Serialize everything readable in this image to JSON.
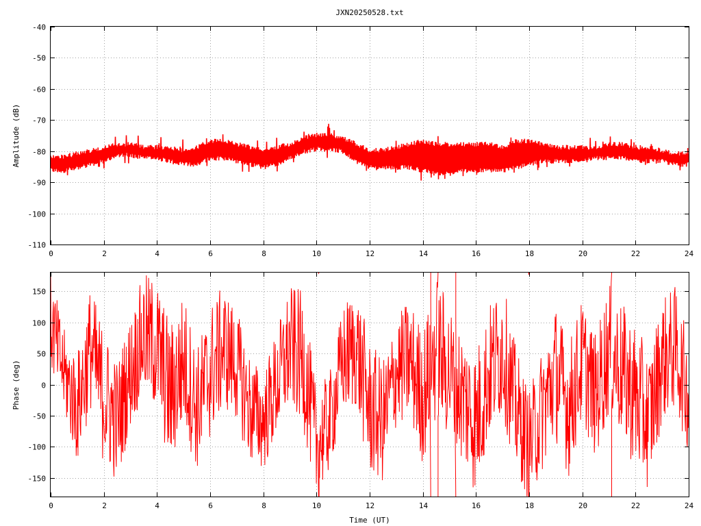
{
  "chart_data": [
    {
      "type": "line",
      "title": "JXN20250528.txt",
      "xlabel": "",
      "ylabel": "Amplitude (dB)",
      "xlim": [
        0,
        24
      ],
      "ylim": [
        -110,
        -40
      ],
      "x_ticks": [
        "0",
        "2",
        "4",
        "6",
        "8",
        "10",
        "12",
        "14",
        "16",
        "18",
        "20",
        "22",
        "24"
      ],
      "y_ticks": [
        "-40",
        "-50",
        "-60",
        "-70",
        "-80",
        "-90",
        "-100",
        "-110"
      ],
      "grid": true,
      "color": "#ff0000",
      "series": [
        {
          "x": [
            0,
            0.5,
            1,
            1.5,
            2,
            2.5,
            3,
            3.5,
            4,
            4.5,
            5,
            5.5,
            6,
            6.5,
            7,
            7.5,
            8,
            8.5,
            9,
            9.5,
            10,
            10.5,
            11,
            11.5,
            12,
            12.5,
            13,
            13.5,
            14,
            14.5,
            15,
            15.5,
            16,
            16.5,
            17,
            17.5,
            18,
            18.5,
            19,
            19.5,
            20,
            20.5,
            21,
            21.5,
            22,
            22.5,
            23,
            23.5,
            24
          ],
          "upper": [
            -81,
            -81,
            -80,
            -79,
            -78,
            -77,
            -77,
            -78,
            -78,
            -78,
            -79,
            -78,
            -76,
            -76,
            -77,
            -78,
            -79,
            -78,
            -77,
            -75,
            -74,
            -74,
            -75,
            -77,
            -79,
            -79,
            -78,
            -77,
            -76,
            -77,
            -77,
            -77,
            -77,
            -77,
            -78,
            -76,
            -76,
            -77,
            -78,
            -78,
            -78,
            -78,
            -77,
            -77,
            -78,
            -78,
            -79,
            -80,
            -80
          ],
          "lower": [
            -87,
            -87,
            -86,
            -85,
            -84,
            -82,
            -82,
            -83,
            -83,
            -84,
            -85,
            -85,
            -83,
            -83,
            -84,
            -85,
            -86,
            -85,
            -83,
            -81,
            -80,
            -80,
            -81,
            -84,
            -86,
            -86,
            -86,
            -86,
            -87,
            -88,
            -88,
            -87,
            -87,
            -87,
            -87,
            -86,
            -85,
            -84,
            -84,
            -84,
            -84,
            -83,
            -83,
            -83,
            -84,
            -84,
            -84,
            -85,
            -85
          ]
        }
      ]
    },
    {
      "type": "line",
      "title": "",
      "xlabel": "Time (UT)",
      "ylabel": "Phase (deg)",
      "xlim": [
        0,
        24
      ],
      "ylim": [
        -180,
        180
      ],
      "x_ticks": [
        "0",
        "2",
        "4",
        "6",
        "8",
        "10",
        "12",
        "14",
        "16",
        "18",
        "20",
        "22",
        "24"
      ],
      "y_ticks": [
        "150",
        "100",
        "50",
        "0",
        "-50",
        "-100",
        "-150"
      ],
      "y_tick_values": [
        150,
        100,
        50,
        0,
        -50,
        -100,
        -150
      ],
      "grid": true,
      "color": "#ff0000",
      "wrap": [
        -180,
        180
      ],
      "series": [
        {
          "x": [
            0,
            0.5,
            1,
            1.5,
            2,
            2.5,
            3,
            3.5,
            4,
            4.5,
            5,
            5.5,
            6,
            6.5,
            7,
            7.5,
            8,
            8.5,
            9,
            9.5,
            10,
            10.5,
            11,
            11.5,
            12,
            12.5,
            13,
            13.5,
            14,
            14.5,
            15,
            15.5,
            16,
            16.5,
            17,
            17.5,
            18,
            18.5,
            19,
            19.5,
            20,
            20.5,
            21,
            21.5,
            22,
            22.5,
            23,
            23.5,
            24
          ],
          "center": [
            100,
            20,
            -40,
            60,
            -20,
            -60,
            20,
            80,
            60,
            -20,
            40,
            -40,
            20,
            60,
            30,
            -40,
            -60,
            0,
            60,
            40,
            -100,
            -60,
            40,
            60,
            -40,
            -60,
            20,
            40,
            -20,
            60,
            20,
            -20,
            -60,
            20,
            60,
            -40,
            -100,
            -40,
            20,
            -40,
            40,
            -20,
            60,
            20,
            -20,
            -60,
            40,
            60,
            -20
          ],
          "spread": [
            80,
            70,
            90,
            100,
            110,
            100,
            90,
            100,
            110,
            120,
            110,
            100,
            110,
            100,
            90,
            90,
            80,
            90,
            100,
            110,
            90,
            80,
            90,
            100,
            110,
            100,
            90,
            100,
            110,
            120,
            110,
            110,
            120,
            110,
            110,
            100,
            90,
            100,
            110,
            110,
            100,
            100,
            110,
            110,
            120,
            110,
            100,
            100,
            90
          ]
        }
      ]
    }
  ]
}
